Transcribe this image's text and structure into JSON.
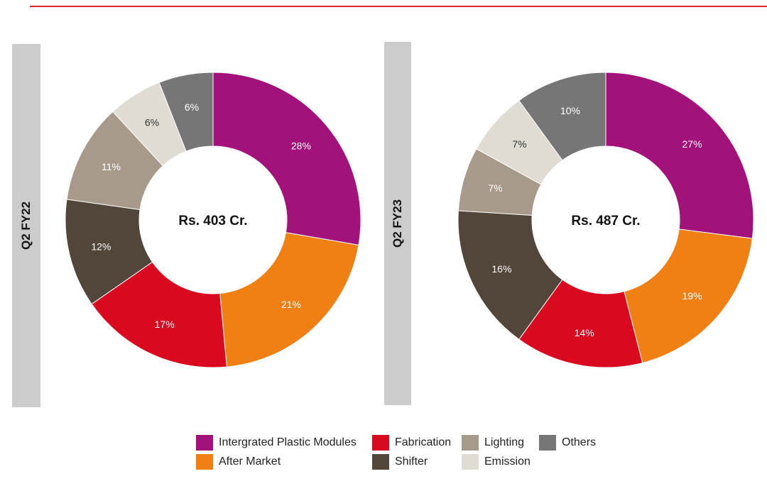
{
  "chart_data": [
    {
      "type": "donut",
      "period_label": "Q2 FY22",
      "center_label": "Rs. 403 Cr.",
      "slices": [
        {
          "name": "Intergrated Plastic Modules",
          "label": "28%",
          "value": 28,
          "color": "#a3117a"
        },
        {
          "name": "After Market",
          "label": "21%",
          "value": 21,
          "color": "#f08014"
        },
        {
          "name": "Fabrication",
          "label": "17%",
          "value": 17,
          "color": "#d90a20"
        },
        {
          "name": "Shifter",
          "label": "12%",
          "value": 12,
          "color": "#514639"
        },
        {
          "name": "Lighting",
          "label": "11%",
          "value": 11,
          "color": "#a89a8a"
        },
        {
          "name": "Emission",
          "label": "6%",
          "value": 6,
          "color": "#e1dcd3"
        },
        {
          "name": "Others",
          "label": "6%",
          "value": 6,
          "color": "#767676"
        }
      ]
    },
    {
      "type": "donut",
      "period_label": "Q2 FY23",
      "center_label": "Rs. 487 Cr.",
      "slices": [
        {
          "name": "Intergrated Plastic Modules",
          "label": "27%",
          "value": 27,
          "color": "#a3117a"
        },
        {
          "name": "After Market",
          "label": "19%",
          "value": 19,
          "color": "#f08014"
        },
        {
          "name": "Fabrication",
          "label": "14%",
          "value": 14,
          "color": "#d90a20"
        },
        {
          "name": "Shifter",
          "label": "16%",
          "value": 16,
          "color": "#514639"
        },
        {
          "name": "Lighting",
          "label": "7%",
          "value": 7,
          "color": "#a89a8a"
        },
        {
          "name": "Emission",
          "label": "7%",
          "value": 7,
          "color": "#e1dcd3"
        },
        {
          "name": "Others",
          "label": "10%",
          "value": 10,
          "color": "#767676"
        }
      ]
    }
  ],
  "legend": [
    {
      "name": "Intergrated Plastic Modules",
      "color": "#a3117a"
    },
    {
      "name": "Fabrication",
      "color": "#d90a20"
    },
    {
      "name": "Lighting",
      "color": "#a89a8a"
    },
    {
      "name": "Others",
      "color": "#767676"
    },
    {
      "name": "After Market",
      "color": "#f08014"
    },
    {
      "name": "Shifter",
      "color": "#514639"
    },
    {
      "name": "Emission",
      "color": "#e1dcd3"
    }
  ],
  "colors": {
    "accent_rule": "#d9262e",
    "side_bar": "#cccccc",
    "slice_label_light": "#ffffff",
    "slice_label_dark": "#333333"
  }
}
